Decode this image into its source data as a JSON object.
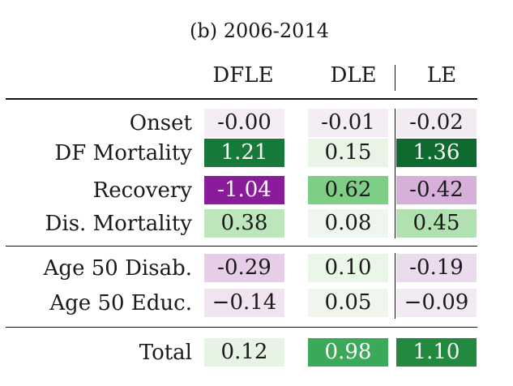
{
  "table": {
    "title": "(b) 2006-2014",
    "columns": [
      "DFLE",
      "DLE",
      "LE"
    ],
    "groups": [
      {
        "rows": [
          {
            "label": "Onset",
            "cells": [
              {
                "text": "-0.00",
                "bg": "#f4eef4",
                "fg": "#1a1a1a"
              },
              {
                "text": "-0.01",
                "bg": "#f4eef4",
                "fg": "#1a1a1a"
              },
              {
                "text": "-0.02",
                "bg": "#f2ecf2",
                "fg": "#1a1a1a"
              }
            ]
          },
          {
            "label": "DF Mortality",
            "cells": [
              {
                "text": "1.21",
                "bg": "#177a3a",
                "fg": "#ffffff"
              },
              {
                "text": "0.15",
                "bg": "#e8f5e5",
                "fg": "#1a1a1a"
              },
              {
                "text": "1.36",
                "bg": "#0f6a2f",
                "fg": "#ffffff"
              }
            ]
          },
          {
            "label": "Recovery",
            "cells": [
              {
                "text": "-1.04",
                "bg": "#8a1b9b",
                "fg": "#ffffff"
              },
              {
                "text": "0.62",
                "bg": "#7fce85",
                "fg": "#1a1a1a"
              },
              {
                "text": "-0.42",
                "bg": "#d6b0d8",
                "fg": "#1a1a1a"
              }
            ]
          },
          {
            "label": "Dis. Mortality",
            "cells": [
              {
                "text": "0.38",
                "bg": "#bde6bc",
                "fg": "#1a1a1a"
              },
              {
                "text": "0.08",
                "bg": "#eff5ef",
                "fg": "#1a1a1a"
              },
              {
                "text": "0.45",
                "bg": "#b1e1b0",
                "fg": "#1a1a1a"
              }
            ]
          }
        ]
      },
      {
        "rows": [
          {
            "label": "Age 50 Disab.",
            "cells": [
              {
                "text": "-0.29",
                "bg": "#e6cde8",
                "fg": "#1a1a1a"
              },
              {
                "text": "0.10",
                "bg": "#eaf6e7",
                "fg": "#1a1a1a"
              },
              {
                "text": "-0.19",
                "bg": "#ecdaee",
                "fg": "#1a1a1a"
              }
            ]
          },
          {
            "label": "Age 50 Educ.",
            "cells": [
              {
                "text": "−0.14",
                "bg": "#f0e4f1",
                "fg": "#1a1a1a"
              },
              {
                "text": "0.05",
                "bg": "#f0f6ee",
                "fg": "#1a1a1a"
              },
              {
                "text": "−0.09",
                "bg": "#f2eaf3",
                "fg": "#1a1a1a"
              }
            ]
          }
        ]
      },
      {
        "rows": [
          {
            "label": "Total",
            "cells": [
              {
                "text": "0.12",
                "bg": "#e6f5e3",
                "fg": "#1a1a1a"
              },
              {
                "text": "0.98",
                "bg": "#3ca85a",
                "fg": "#ffffff"
              },
              {
                "text": "1.10",
                "bg": "#22893f",
                "fg": "#ffffff"
              }
            ]
          }
        ]
      }
    ]
  }
}
